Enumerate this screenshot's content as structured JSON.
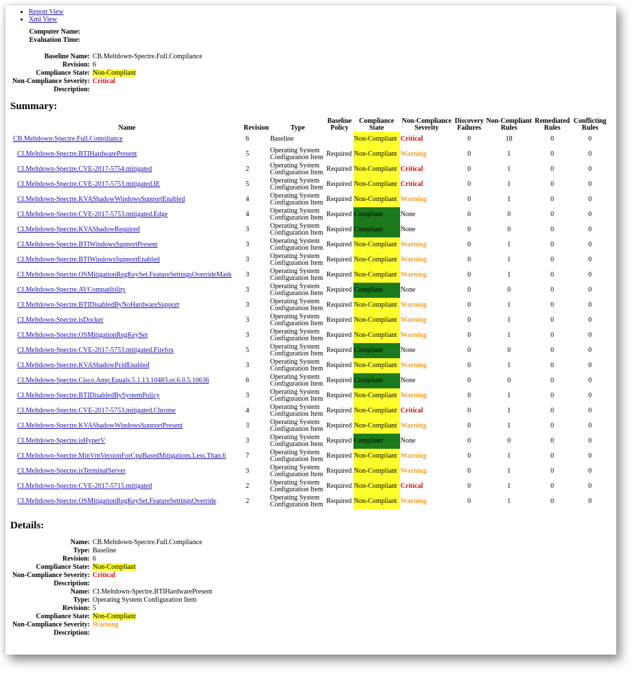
{
  "nav": [
    "Report View",
    "Xml View"
  ],
  "header": {
    "computer_name_label": "Computer Name:",
    "computer_name": "",
    "evaluation_time_label": "Evaluation Time:",
    "evaluation_time": "",
    "baseline_name_label": "Baseline Name:",
    "baseline_name": "CB.Meltdown-Spectre.Full.Compliance",
    "revision_label": "Revision:",
    "revision": "6",
    "state_label": "Compliance State:",
    "state": "Non-Compliant",
    "severity_label": "Non-Compliance Severity:",
    "severity": "Critical",
    "description_label": "Description:",
    "description": ""
  },
  "summary": {
    "title": "Summary:",
    "columns": {
      "name": "Name",
      "revision": "Revision",
      "type": "Type",
      "policy1": "Baseline",
      "policy2": "Policy",
      "state1": "Compliance",
      "state2": "State",
      "sev1": "Non-Compliance",
      "sev2": "Severity",
      "disc1": "Discovery",
      "disc2": "Failures",
      "ncr1": "Non-Compliant",
      "ncr2": "Rules",
      "rem1": "Remediated",
      "rem2": "Rules",
      "conf1": "Conflicting",
      "conf2": "Rules"
    },
    "rows": [
      {
        "name": "CB.Meltdown-Spectre.Full.Compliance",
        "revision": "6",
        "type1": "Baseline",
        "type2": "",
        "policy": "",
        "state": "Non-Compliant",
        "severity": "Critical",
        "discovery": "0",
        "noncompliant": "18",
        "remediated": "0",
        "conflicting": "0"
      },
      {
        "name": "CI.Meltdown-Spectre.BTIHardwarePresent",
        "revision": "5",
        "type1": "Operating System",
        "type2": "Configuration Item",
        "policy": "Required",
        "state": "Non-Compliant",
        "severity": "Warning",
        "discovery": "0",
        "noncompliant": "1",
        "remediated": "0",
        "conflicting": "0"
      },
      {
        "name": "CI.Meltdown-Spectre.CVE-2017-5754.mitigated",
        "revision": "2",
        "type1": "Operating System",
        "type2": "Configuration Item",
        "policy": "Required",
        "state": "Non-Compliant",
        "severity": "Critical",
        "discovery": "0",
        "noncompliant": "1",
        "remediated": "0",
        "conflicting": "0"
      },
      {
        "name": "CI.Meltdown-Spectre.CVE-2017-5753.mitigated.IE",
        "revision": "5",
        "type1": "Operating System",
        "type2": "Configuration Item",
        "policy": "Required",
        "state": "Non-Compliant",
        "severity": "Critical",
        "discovery": "0",
        "noncompliant": "1",
        "remediated": "0",
        "conflicting": "0"
      },
      {
        "name": "CI.Meltdown-Spectre.KVAShadowWindowsSupportEnabled",
        "revision": "4",
        "type1": "Operating System",
        "type2": "Configuration Item",
        "policy": "Required",
        "state": "Non-Compliant",
        "severity": "Warning",
        "discovery": "0",
        "noncompliant": "1",
        "remediated": "0",
        "conflicting": "0"
      },
      {
        "name": "CI.Meltdown-Spectre.CVE-2017-5753.mitigated.Edge",
        "revision": "4",
        "type1": "Operating System",
        "type2": "Configuration Item",
        "policy": "Required",
        "state": "Compliant",
        "severity": "None",
        "discovery": "0",
        "noncompliant": "0",
        "remediated": "0",
        "conflicting": "0"
      },
      {
        "name": "CI.Meltdown-Spectre.KVAShadowRequired",
        "revision": "3",
        "type1": "Operating System",
        "type2": "Configuration Item",
        "policy": "Required",
        "state": "Compliant",
        "severity": "None",
        "discovery": "0",
        "noncompliant": "0",
        "remediated": "0",
        "conflicting": "0"
      },
      {
        "name": "CI.Meltdown-Spectre.BTIWindowsSupportPresent",
        "revision": "3",
        "type1": "Operating System",
        "type2": "Configuration Item",
        "policy": "Required",
        "state": "Non-Compliant",
        "severity": "Warning",
        "discovery": "0",
        "noncompliant": "1",
        "remediated": "0",
        "conflicting": "0"
      },
      {
        "name": "CI.Meltdown-Spectre.BTIWindowsSupportEnabled",
        "revision": "3",
        "type1": "Operating System",
        "type2": "Configuration Item",
        "policy": "Required",
        "state": "Non-Compliant",
        "severity": "Warning",
        "discovery": "0",
        "noncompliant": "1",
        "remediated": "0",
        "conflicting": "0"
      },
      {
        "name": "CI.Meltdown-Spectre.OSMitigationRegKeySet.FeatureSettingsOverrideMask",
        "revision": "3",
        "type1": "Operating System",
        "type2": "Configuration Item",
        "policy": "Required",
        "state": "Non-Compliant",
        "severity": "Warning",
        "discovery": "0",
        "noncompliant": "1",
        "remediated": "0",
        "conflicting": "0"
      },
      {
        "name": "CI.Meltdown-Spectre.AVCompatibility",
        "revision": "3",
        "type1": "Operating System",
        "type2": "Configuration Item",
        "policy": "Required",
        "state": "Compliant",
        "severity": "None",
        "discovery": "0",
        "noncompliant": "0",
        "remediated": "0",
        "conflicting": "0"
      },
      {
        "name": "CI.Meltdown-Spectre.BTIDisabledByNoHardwareSupport",
        "revision": "3",
        "type1": "Operating System",
        "type2": "Configuration Item",
        "policy": "Required",
        "state": "Non-Compliant",
        "severity": "Warning",
        "discovery": "0",
        "noncompliant": "1",
        "remediated": "0",
        "conflicting": "0"
      },
      {
        "name": "CI.Meltdown-Spectre.isDocker",
        "revision": "3",
        "type1": "Operating System",
        "type2": "Configuration Item",
        "policy": "Required",
        "state": "Non-Compliant",
        "severity": "Warning",
        "discovery": "0",
        "noncompliant": "1",
        "remediated": "0",
        "conflicting": "0"
      },
      {
        "name": "CI.Meltdown-Spectre.OSMitigationRegKeySet",
        "revision": "3",
        "type1": "Operating System",
        "type2": "Configuration Item",
        "policy": "Required",
        "state": "Non-Compliant",
        "severity": "Warning",
        "discovery": "0",
        "noncompliant": "1",
        "remediated": "0",
        "conflicting": "0"
      },
      {
        "name": "CI.Meltdown-Spectre.CVE-2017-5753.mitigated.Firefox",
        "revision": "5",
        "type1": "Operating System",
        "type2": "Configuration Item",
        "policy": "Required",
        "state": "Compliant",
        "severity": "None",
        "discovery": "0",
        "noncompliant": "0",
        "remediated": "0",
        "conflicting": "0"
      },
      {
        "name": "CI.Meltdown-Spectre.KVAShadowPcidEnabled",
        "revision": "3",
        "type1": "Operating System",
        "type2": "Configuration Item",
        "policy": "Required",
        "state": "Non-Compliant",
        "severity": "Warning",
        "discovery": "0",
        "noncompliant": "1",
        "remediated": "0",
        "conflicting": "0"
      },
      {
        "name": "CI.Meltdown-Spectre.Cisco.Amp.Equals.5.1.13.10483.or.6.0.5.10636",
        "revision": "6",
        "type1": "Operating System",
        "type2": "Configuration Item",
        "policy": "Required",
        "state": "Compliant",
        "severity": "None",
        "discovery": "0",
        "noncompliant": "0",
        "remediated": "0",
        "conflicting": "0"
      },
      {
        "name": "CI.Meltdown-Spectre.BTIDisabledBySystemPolicy",
        "revision": "3",
        "type1": "Operating System",
        "type2": "Configuration Item",
        "policy": "Required",
        "state": "Non-Compliant",
        "severity": "Warning",
        "discovery": "0",
        "noncompliant": "1",
        "remediated": "0",
        "conflicting": "0"
      },
      {
        "name": "CI.Meltdown-Spectre.CVE-2017-5753.mitigated.Chrome",
        "revision": "4",
        "type1": "Operating System",
        "type2": "Configuration Item",
        "policy": "Required",
        "state": "Non-Compliant",
        "severity": "Critical",
        "discovery": "0",
        "noncompliant": "1",
        "remediated": "0",
        "conflicting": "0"
      },
      {
        "name": "CI.Meltdown-Spectre.KVAShadowWindowsSupportPresent",
        "revision": "3",
        "type1": "Operating System",
        "type2": "Configuration Item",
        "policy": "Required",
        "state": "Non-Compliant",
        "severity": "Warning",
        "discovery": "0",
        "noncompliant": "1",
        "remediated": "0",
        "conflicting": "0"
      },
      {
        "name": "CI.Meltdown-Spectre.isHyperV",
        "revision": "3",
        "type1": "Operating System",
        "type2": "Configuration Item",
        "policy": "Required",
        "state": "Compliant",
        "severity": "None",
        "discovery": "0",
        "noncompliant": "0",
        "remediated": "0",
        "conflicting": "0"
      },
      {
        "name": "CI.Meltdown-Spectre.MinVmVersionForCpuBasedMitigations.Less.Than.6",
        "revision": "7",
        "type1": "Operating System",
        "type2": "Configuration Item",
        "policy": "Required",
        "state": "Non-Compliant",
        "severity": "Warning",
        "discovery": "0",
        "noncompliant": "1",
        "remediated": "0",
        "conflicting": "0"
      },
      {
        "name": "CI.Meltdown-Spectre.isTerminalServer",
        "revision": "3",
        "type1": "Operating System",
        "type2": "Configuration Item",
        "policy": "Required",
        "state": "Non-Compliant",
        "severity": "Warning",
        "discovery": "0",
        "noncompliant": "1",
        "remediated": "0",
        "conflicting": "0"
      },
      {
        "name": "CI.Meltdown-Spectre.CVE-2017-5715.mitigated",
        "revision": "2",
        "type1": "Operating System",
        "type2": "Configuration Item",
        "policy": "Required",
        "state": "Non-Compliant",
        "severity": "Critical",
        "discovery": "0",
        "noncompliant": "1",
        "remediated": "0",
        "conflicting": "0"
      },
      {
        "name": "CI.Meltdown-Spectre.OSMitigationRegKeySet.FeatureSettingsOverride",
        "revision": "2",
        "type1": "Operating System",
        "type2": "Configuration Item",
        "policy": "Required",
        "state": "Non-Compliant",
        "severity": "Warning",
        "discovery": "0",
        "noncompliant": "1",
        "remediated": "0",
        "conflicting": "0"
      }
    ]
  },
  "details": {
    "title": "Details:",
    "labels": {
      "name": "Name:",
      "type": "Type:",
      "revision": "Revision:",
      "state": "Compliance State:",
      "severity": "Non-Compliance Severity:",
      "description": "Description:"
    },
    "items": [
      {
        "name": "CB.Meltdown-Spectre.Full.Compliance",
        "type": "Baseline",
        "revision": "6",
        "state": "Non-Compliant",
        "severity": "Critical",
        "description": ""
      },
      {
        "name": "CI.Meltdown-Spectre.BTIHardwarePresent",
        "type": "Operating System Configuration Item",
        "revision": "5",
        "state": "Non-Compliant",
        "severity": "Warning",
        "description": ""
      }
    ]
  },
  "colors": {
    "highlight": "#ffff2e",
    "compliant": "#1b7a1b",
    "critical": "#cc1010",
    "warning": "#f0a030",
    "link": "#1a0dab"
  }
}
